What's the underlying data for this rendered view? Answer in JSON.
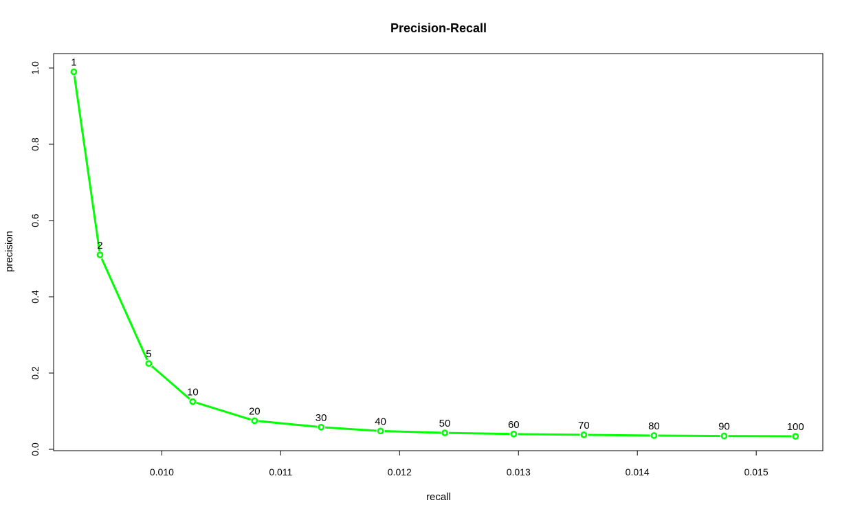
{
  "chart_data": {
    "type": "line",
    "title": "Precision-Recall",
    "xlabel": "recall",
    "ylabel": "precision",
    "xlim": [
      0.00909,
      0.01556
    ],
    "ylim": [
      0.0,
      1.0
    ],
    "xticks": [
      0.01,
      0.011,
      0.012,
      0.013,
      0.014,
      0.015
    ],
    "xtick_labels": [
      "0.010",
      "0.011",
      "0.012",
      "0.013",
      "0.014",
      "0.015"
    ],
    "yticks": [
      0.0,
      0.2,
      0.4,
      0.6,
      0.8,
      1.0
    ],
    "ytick_labels": [
      "0.0",
      "0.2",
      "0.4",
      "0.6",
      "0.8",
      "1.0"
    ],
    "grid": false,
    "legend": "none",
    "color": "#00ff00",
    "series": [
      {
        "x": [
          0.00926,
          0.00948,
          0.00989,
          0.01026,
          0.01078,
          0.01134,
          0.01184,
          0.01238,
          0.01296,
          0.01355,
          0.01414,
          0.01473,
          0.01533
        ],
        "y": [
          0.99,
          0.51,
          0.225,
          0.125,
          0.075,
          0.058,
          0.048,
          0.043,
          0.04,
          0.038,
          0.036,
          0.035,
          0.034
        ],
        "point_labels": [
          "1",
          "2",
          "5",
          "10",
          "20",
          "30",
          "40",
          "50",
          "60",
          "70",
          "80",
          "90",
          "100"
        ]
      }
    ]
  }
}
